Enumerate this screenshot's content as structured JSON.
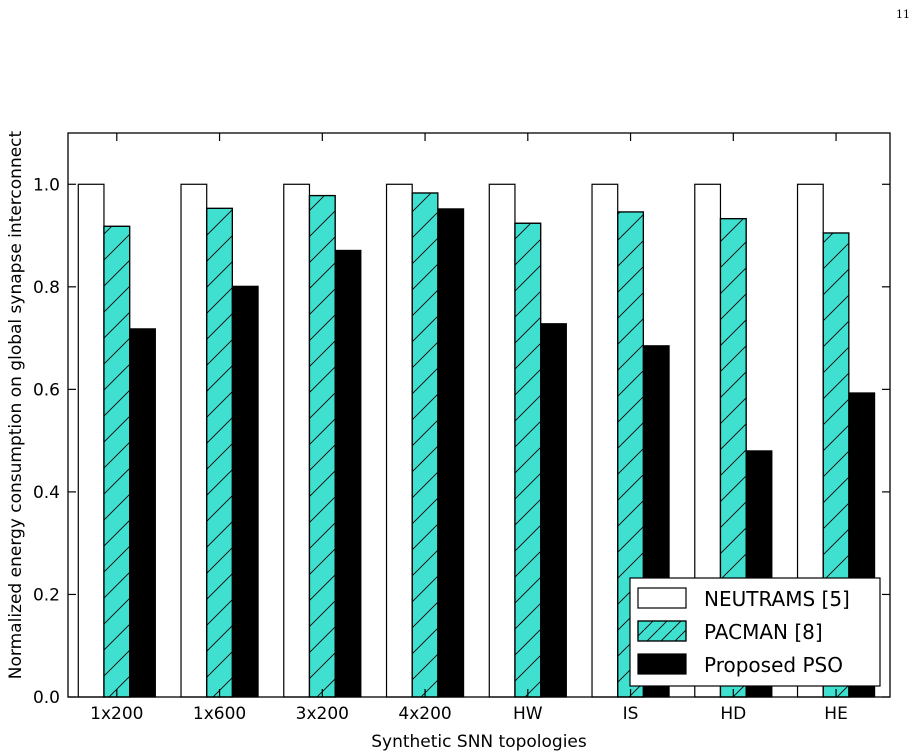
{
  "page": {
    "number": "11"
  },
  "colors": {
    "neutrams": "#ffffff",
    "pacman": "#40e0d0",
    "pso": "#000000",
    "axis": "#000000"
  },
  "chart_data": {
    "type": "bar",
    "categories": [
      "1x200",
      "1x600",
      "3x200",
      "4x200",
      "HW",
      "IS",
      "HD",
      "HE"
    ],
    "series": [
      {
        "name": "NEUTRAMS [5]",
        "values": [
          1.0,
          1.0,
          1.0,
          1.0,
          1.0,
          1.0,
          1.0,
          1.0
        ]
      },
      {
        "name": "PACMAN [8]",
        "values": [
          0.918,
          0.953,
          0.978,
          0.983,
          0.924,
          0.946,
          0.933,
          0.905
        ]
      },
      {
        "name": "Proposed PSO",
        "values": [
          0.718,
          0.801,
          0.871,
          0.952,
          0.728,
          0.685,
          0.48,
          0.593
        ]
      }
    ],
    "xlabel": "Synthetic SNN topologies",
    "ylabel": "Normalized energy consumption on global synapse interconnect",
    "ylim": [
      0,
      1.1
    ],
    "yticks": [
      0.0,
      0.2,
      0.4,
      0.6,
      0.8,
      1.0
    ],
    "ytick_labels": [
      "0.0",
      "0.2",
      "0.4",
      "0.6",
      "0.8",
      "1.0"
    ],
    "legend_position": "lower-right",
    "grid": false
  }
}
